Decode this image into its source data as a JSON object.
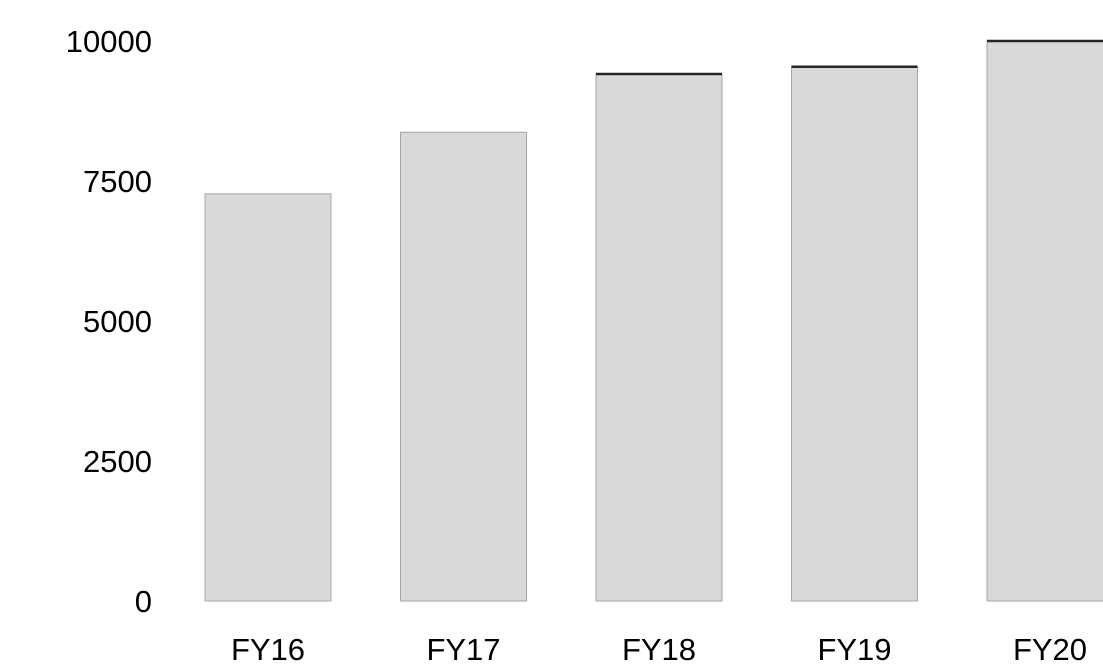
{
  "chart_data": {
    "type": "bar",
    "categories": [
      "FY16",
      "FY17",
      "FY18",
      "FY19",
      "FY20"
    ],
    "values": [
      7270,
      8370,
      9410,
      9540,
      10000
    ],
    "ylim": [
      0,
      10000
    ],
    "yticks": [
      0,
      2500,
      5000,
      7500,
      10000
    ],
    "ytick_labels": [
      "0",
      "2500",
      "5000",
      "7500",
      "10000"
    ],
    "bar_color": "#d9d9d9",
    "bar_edge_color": "#a6a6a6",
    "top_marker_color": "#262626",
    "top_marker_bars": [
      "FY18",
      "FY19",
      "FY20"
    ],
    "grid": false,
    "legend": "none"
  }
}
